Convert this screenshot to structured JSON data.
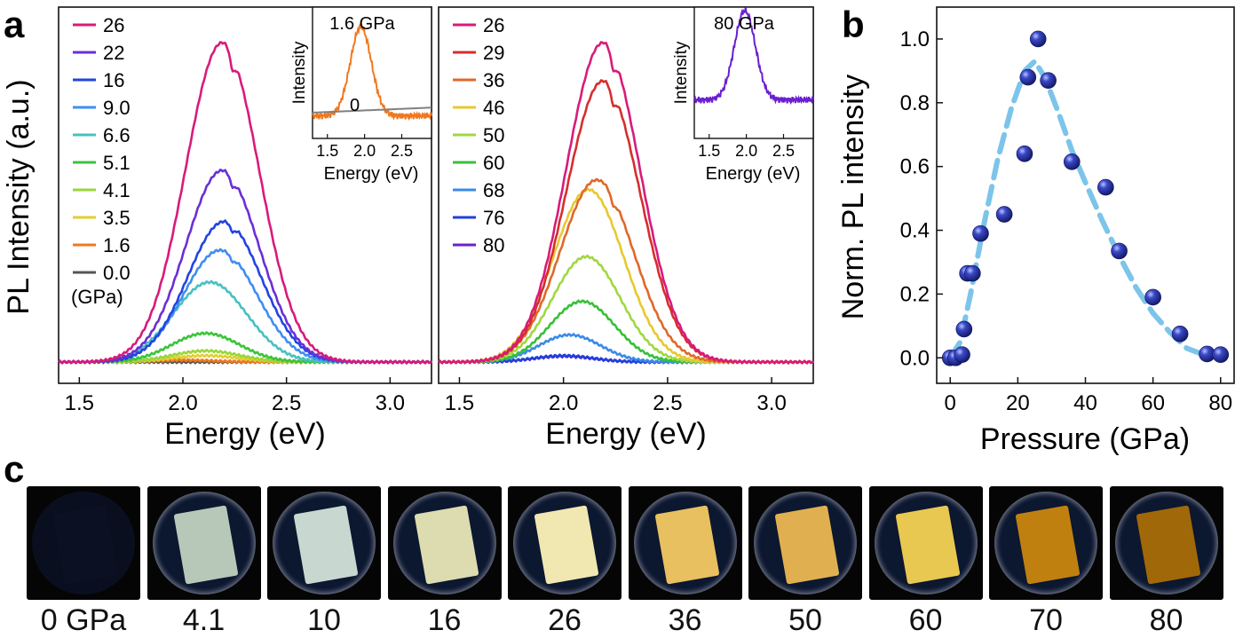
{
  "panel_letters": [
    "a",
    "b",
    "c"
  ],
  "chart_data": [
    {
      "type": "line",
      "panel": "a",
      "xlabel": "Energy (eV)",
      "ylabel": "PL Intensity (a.u.)",
      "xlim": [
        1.4,
        3.2
      ],
      "xticks": [
        "1.5",
        "2.0",
        "2.5",
        "3.0"
      ],
      "legend_title": "(GPa)",
      "legend_position": "top-left",
      "series": [
        {
          "name": "26",
          "color": "#d81b7a",
          "peak": 2.19,
          "amplitude": 1.0,
          "width": 0.25,
          "dip": true
        },
        {
          "name": "22",
          "color": "#6b2fd6",
          "peak": 2.19,
          "amplitude": 0.6,
          "width": 0.25,
          "dip": true
        },
        {
          "name": "16",
          "color": "#2344e0",
          "peak": 2.2,
          "amplitude": 0.44,
          "width": 0.25,
          "dip": true
        },
        {
          "name": "9.0",
          "color": "#3f8ef0",
          "peak": 2.18,
          "amplitude": 0.35,
          "width": 0.25,
          "dip": true
        },
        {
          "name": "6.6",
          "color": "#48c0c0",
          "peak": 2.13,
          "amplitude": 0.25,
          "width": 0.25,
          "dip": false
        },
        {
          "name": "5.1",
          "color": "#3bc43b",
          "peak": 2.11,
          "amplitude": 0.09,
          "width": 0.23,
          "dip": false
        },
        {
          "name": "4.1",
          "color": "#9ad63b",
          "peak": 2.11,
          "amplitude": 0.035,
          "width": 0.23,
          "dip": false
        },
        {
          "name": "3.5",
          "color": "#e0d030",
          "peak": 2.11,
          "amplitude": 0.02,
          "width": 0.23,
          "dip": false
        },
        {
          "name": "1.6",
          "color": "#f07820",
          "peak": 2.0,
          "amplitude": 0.006,
          "width": 0.22,
          "dip": false
        },
        {
          "name": "0.0",
          "color": "#555555",
          "peak": 2.0,
          "amplitude": 0.0,
          "width": 0.22,
          "dip": false
        }
      ],
      "inset": {
        "title": "1.6 GPa",
        "ylabel": "Intensity",
        "xlabel": "Energy (eV)",
        "xlim": [
          1.3,
          2.9
        ],
        "xticks": [
          "1.5",
          "2.0",
          "2.5"
        ],
        "series": [
          {
            "name": "1.6 GPa",
            "color": "#f07820",
            "peak": 1.95,
            "amplitude": 1.0,
            "width": 0.2
          },
          {
            "name": "0",
            "color": "#808080",
            "peak": 1.95,
            "amplitude": 0.0,
            "width": 0.2
          }
        ],
        "zero_label": "0"
      }
    },
    {
      "type": "line",
      "panel": "a",
      "xlabel": "Energy (eV)",
      "xlim": [
        1.4,
        3.2
      ],
      "xticks": [
        "1.5",
        "2.0",
        "2.5",
        "3.0"
      ],
      "legend_position": "top-left",
      "series": [
        {
          "name": "26",
          "color": "#d81b7a",
          "peak": 2.19,
          "amplitude": 1.0,
          "width": 0.25,
          "dip": true
        },
        {
          "name": "29",
          "color": "#d62e2e",
          "peak": 2.19,
          "amplitude": 0.88,
          "width": 0.25,
          "dip": true
        },
        {
          "name": "36",
          "color": "#e0682a",
          "peak": 2.16,
          "amplitude": 0.57,
          "width": 0.25,
          "dip": true
        },
        {
          "name": "46",
          "color": "#e8c830",
          "peak": 2.12,
          "amplitude": 0.54,
          "width": 0.24,
          "dip": false
        },
        {
          "name": "50",
          "color": "#a0d840",
          "peak": 2.11,
          "amplitude": 0.33,
          "width": 0.23,
          "dip": false
        },
        {
          "name": "60",
          "color": "#38c038",
          "peak": 2.09,
          "amplitude": 0.19,
          "width": 0.22,
          "dip": false
        },
        {
          "name": "68",
          "color": "#3a8ae8",
          "peak": 2.03,
          "amplitude": 0.085,
          "width": 0.21,
          "dip": false
        },
        {
          "name": "76",
          "color": "#2040d8",
          "peak": 2.0,
          "amplitude": 0.02,
          "width": 0.2,
          "dip": false
        },
        {
          "name": "80",
          "color": "#6a1fd0",
          "peak": 2.0,
          "amplitude": 0.018,
          "width": 0.2,
          "dip": false
        }
      ],
      "inset": {
        "title": "80 GPa",
        "ylabel": "Intensity",
        "xlabel": "Energy (eV)",
        "xlim": [
          1.3,
          2.9
        ],
        "xticks": [
          "1.5",
          "2.0",
          "2.5"
        ],
        "series": [
          {
            "name": "80 GPa",
            "color": "#6a1fd0",
            "peak": 1.98,
            "amplitude": 1.0,
            "width": 0.2
          }
        ]
      }
    },
    {
      "type": "scatter",
      "panel": "b",
      "xlabel": "Pressure (GPa)",
      "ylabel": "Norm. PL intensity",
      "xlim": [
        -4,
        84
      ],
      "ylim": [
        -0.08,
        1.1
      ],
      "xticks": [
        "0",
        "20",
        "40",
        "60",
        "80"
      ],
      "yticks": [
        "0.0",
        "0.2",
        "0.4",
        "0.6",
        "0.8",
        "1.0"
      ],
      "points": {
        "x": [
          0,
          1.6,
          3.5,
          4.1,
          5.1,
          6.6,
          9.0,
          16,
          22,
          23,
          26,
          29,
          36,
          46,
          50,
          60,
          68,
          76,
          80
        ],
        "y": [
          0.0,
          0.0,
          0.01,
          0.09,
          0.265,
          0.265,
          0.39,
          0.45,
          0.64,
          0.88,
          1.0,
          0.87,
          0.615,
          0.535,
          0.335,
          0.19,
          0.075,
          0.012,
          0.01
        ]
      },
      "fit": {
        "x": [
          0,
          3,
          6,
          10,
          14,
          18,
          22,
          25,
          28,
          32,
          36,
          40,
          45,
          50,
          55,
          60,
          65,
          70,
          75,
          80
        ],
        "y": [
          0.0,
          0.05,
          0.2,
          0.42,
          0.62,
          0.78,
          0.9,
          0.93,
          0.88,
          0.77,
          0.65,
          0.55,
          0.43,
          0.32,
          0.22,
          0.14,
          0.08,
          0.03,
          0.01,
          0.005
        ],
        "color": "#7cc4ea"
      },
      "marker_color": "#2430a8"
    }
  ],
  "photos": {
    "labels": [
      "0 GPa",
      "4.1",
      "10",
      "16",
      "26",
      "36",
      "50",
      "60",
      "70",
      "80"
    ],
    "tints": [
      "#0d1428",
      "#b8c8b8",
      "#c8d8d0",
      "#dcdcb0",
      "#f0e8b0",
      "#e8c060",
      "#e0b050",
      "#e8c850",
      "#c08010",
      "#a06808"
    ]
  }
}
